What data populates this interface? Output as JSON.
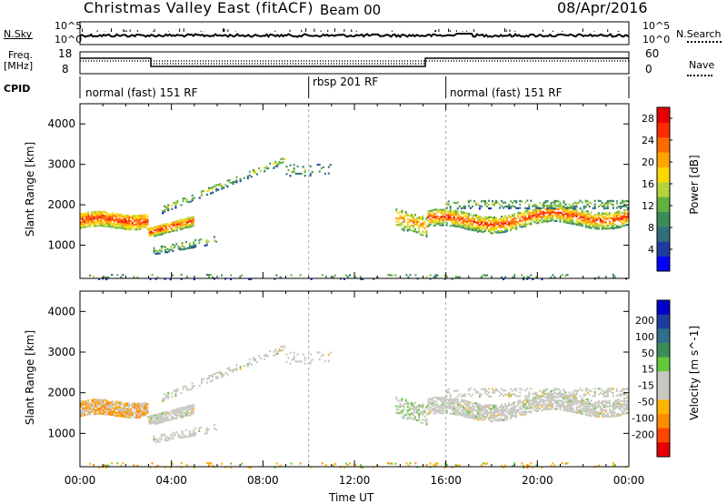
{
  "header": {
    "title": "Christmas Valley East (fitACF)",
    "beam": "Beam 00",
    "date": "08/Apr/2016"
  },
  "top_panels": {
    "nsky_label": "N.Sky",
    "nsearch_label": "N.Search",
    "nsky_ticks": [
      "10^5",
      "10^0"
    ],
    "nsky_right_ticks": [
      "10^5",
      "10^0"
    ],
    "freq_label": "Freq.",
    "freq_unit": "[MHz]",
    "freq_ticks": [
      "18",
      "8"
    ],
    "nave_label": "Nave",
    "nave_ticks": [
      "60",
      "0"
    ],
    "cpid_label": "CPID"
  },
  "cpid_segments": [
    {
      "label": "normal (fast) 151 RF",
      "start_hour": 0
    },
    {
      "label": "rbsp 201 RF",
      "start_hour": 10
    },
    {
      "label": "normal (fast) 151 RF",
      "start_hour": 16
    }
  ],
  "colors": {
    "power": [
      "#0000ff",
      "#1e3ca0",
      "#2f6e7a",
      "#3c8c5a",
      "#62b040",
      "#b4d23c",
      "#ffd700",
      "#ffa500",
      "#ff6a00",
      "#ff2a00",
      "#e60000"
    ],
    "velocity": [
      "#e60000",
      "#ff4500",
      "#ff8c00",
      "#ffb400",
      "#c8c8c0",
      "#c8c8c0",
      "#64c83c",
      "#3c8c5a",
      "#2f6e8c",
      "#1e3ca0",
      "#0000c8"
    ]
  },
  "chart_data": [
    {
      "type": "heatmap",
      "panel": "power",
      "ylabel": "Slant Range [km]",
      "xlabel": "",
      "ylim": [
        180,
        4500
      ],
      "yticks": [
        1000,
        2000,
        3000,
        4000
      ],
      "xlim_hours": [
        0,
        24
      ],
      "colorbar_label": "Power [dB]",
      "colorbar_ticks": [
        "4",
        "8",
        "12",
        "16",
        "20",
        "24",
        "28"
      ],
      "colorbar_range": [
        0,
        30
      ]
    },
    {
      "type": "heatmap",
      "panel": "velocity",
      "ylabel": "Slant Range [km]",
      "xlabel": "Time UT",
      "ylim": [
        180,
        4500
      ],
      "yticks": [
        1000,
        2000,
        3000,
        4000
      ],
      "xlim_hours": [
        0,
        24
      ],
      "xtick_labels": [
        "00:00",
        "04:00",
        "08:00",
        "12:00",
        "16:00",
        "20:00",
        "00:00"
      ],
      "colorbar_label": "Velocity [m s^-1]",
      "colorbar_ticks": [
        "200",
        "100",
        "50",
        "15",
        "-15",
        "-50",
        "-100",
        "-200"
      ]
    }
  ]
}
